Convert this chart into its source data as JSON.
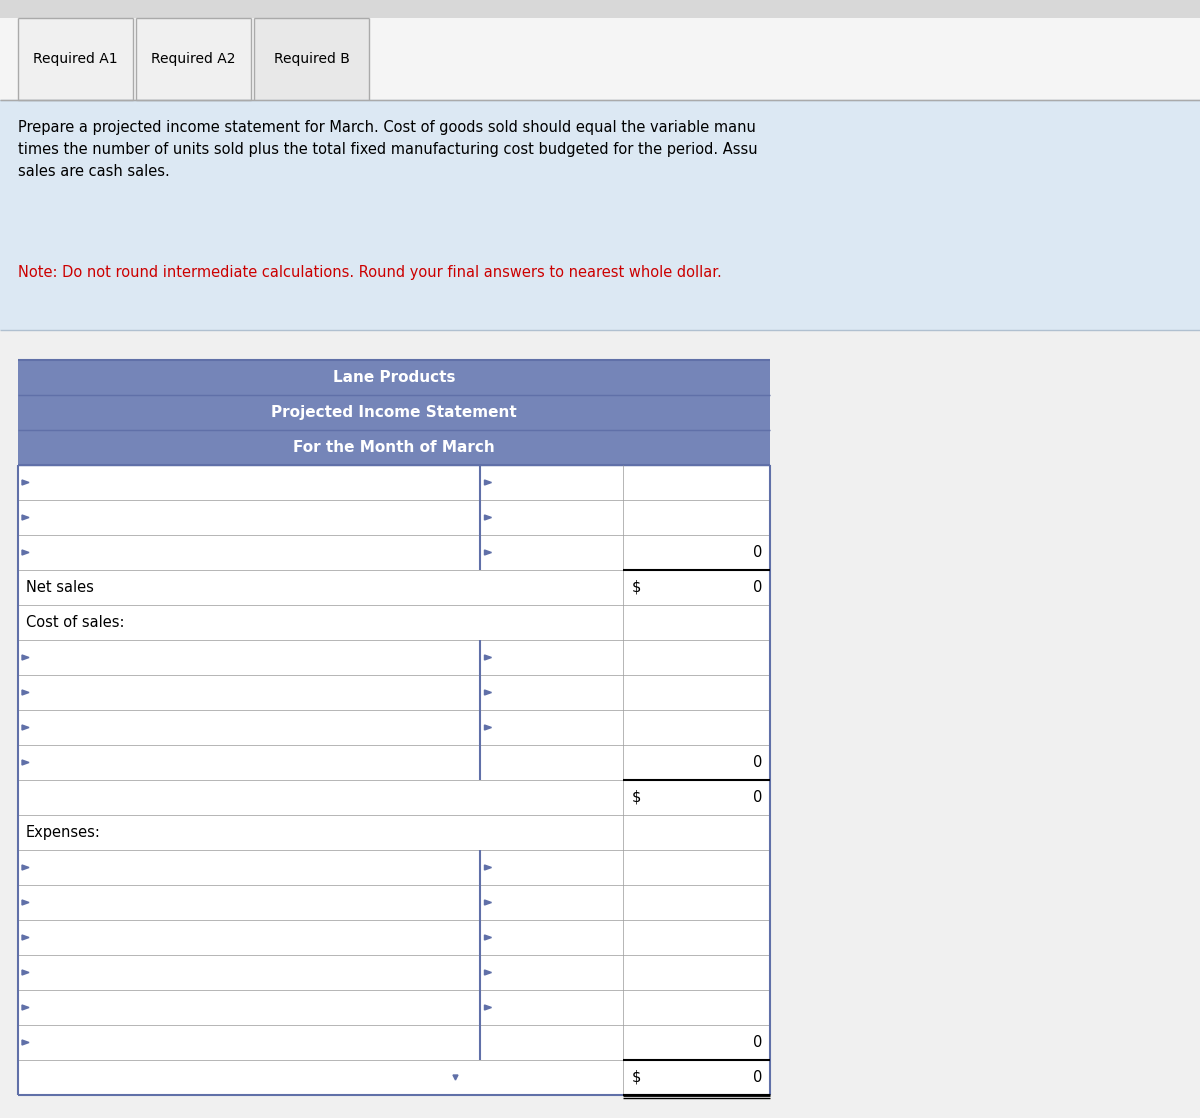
{
  "tab_labels": [
    "Required A1",
    "Required A2",
    "Required B"
  ],
  "active_tab": 2,
  "instruction_line1": "Prepare a projected income statement for March. Cost of goods sold should equal the variable manu",
  "instruction_line2": "times the number of units sold plus the total fixed manufacturing cost budgeted for the period. Assu",
  "instruction_line3": "sales are cash sales.",
  "note_text": "Note: Do not round intermediate calculations. Round your final answers to nearest whole dollar.",
  "company_name": "Lane Products",
  "statement_title": "Projected Income Statement",
  "statement_period": "For the Month of March",
  "header_bg": "#7585b8",
  "header_text_color": "#ffffff",
  "table_border_color": "#6070a8",
  "note_color": "#cc0000",
  "rows": [
    {
      "label": "",
      "col3": "",
      "has_arrow1": true,
      "has_arrow2": true,
      "thick_bottom": false,
      "show_dollar": false
    },
    {
      "label": "",
      "col3": "",
      "has_arrow1": true,
      "has_arrow2": true,
      "thick_bottom": false,
      "show_dollar": false
    },
    {
      "label": "",
      "col3": "0",
      "has_arrow1": true,
      "has_arrow2": true,
      "thick_bottom": true,
      "show_dollar": false
    },
    {
      "label": "Net sales",
      "col3": "0",
      "has_arrow1": false,
      "has_arrow2": false,
      "thick_bottom": false,
      "show_dollar": true
    },
    {
      "label": "Cost of sales:",
      "col3": "",
      "has_arrow1": false,
      "has_arrow2": false,
      "thick_bottom": false,
      "show_dollar": false
    },
    {
      "label": "",
      "col3": "",
      "has_arrow1": true,
      "has_arrow2": true,
      "thick_bottom": false,
      "show_dollar": false
    },
    {
      "label": "",
      "col3": "",
      "has_arrow1": true,
      "has_arrow2": true,
      "thick_bottom": false,
      "show_dollar": false
    },
    {
      "label": "",
      "col3": "",
      "has_arrow1": true,
      "has_arrow2": true,
      "thick_bottom": false,
      "show_dollar": false
    },
    {
      "label": "",
      "col3": "0",
      "has_arrow1": true,
      "has_arrow2": false,
      "thick_bottom": true,
      "show_dollar": false
    },
    {
      "label": "",
      "col3": "0",
      "has_arrow1": false,
      "has_arrow2": false,
      "thick_bottom": false,
      "show_dollar": true
    },
    {
      "label": "Expenses:",
      "col3": "",
      "has_arrow1": false,
      "has_arrow2": false,
      "thick_bottom": false,
      "show_dollar": false
    },
    {
      "label": "",
      "col3": "",
      "has_arrow1": true,
      "has_arrow2": true,
      "thick_bottom": false,
      "show_dollar": false
    },
    {
      "label": "",
      "col3": "",
      "has_arrow1": true,
      "has_arrow2": true,
      "thick_bottom": false,
      "show_dollar": false
    },
    {
      "label": "",
      "col3": "",
      "has_arrow1": true,
      "has_arrow2": true,
      "thick_bottom": false,
      "show_dollar": false
    },
    {
      "label": "",
      "col3": "",
      "has_arrow1": true,
      "has_arrow2": true,
      "thick_bottom": false,
      "show_dollar": false
    },
    {
      "label": "",
      "col3": "",
      "has_arrow1": true,
      "has_arrow2": true,
      "thick_bottom": false,
      "show_dollar": false
    },
    {
      "label": "",
      "col3": "0",
      "has_arrow1": true,
      "has_arrow2": false,
      "thick_bottom": true,
      "show_dollar": false
    },
    {
      "label": "",
      "col3": "0",
      "has_arrow1": false,
      "has_arrow2": false,
      "thick_bottom": true,
      "show_dollar": true,
      "last_row": true
    }
  ]
}
